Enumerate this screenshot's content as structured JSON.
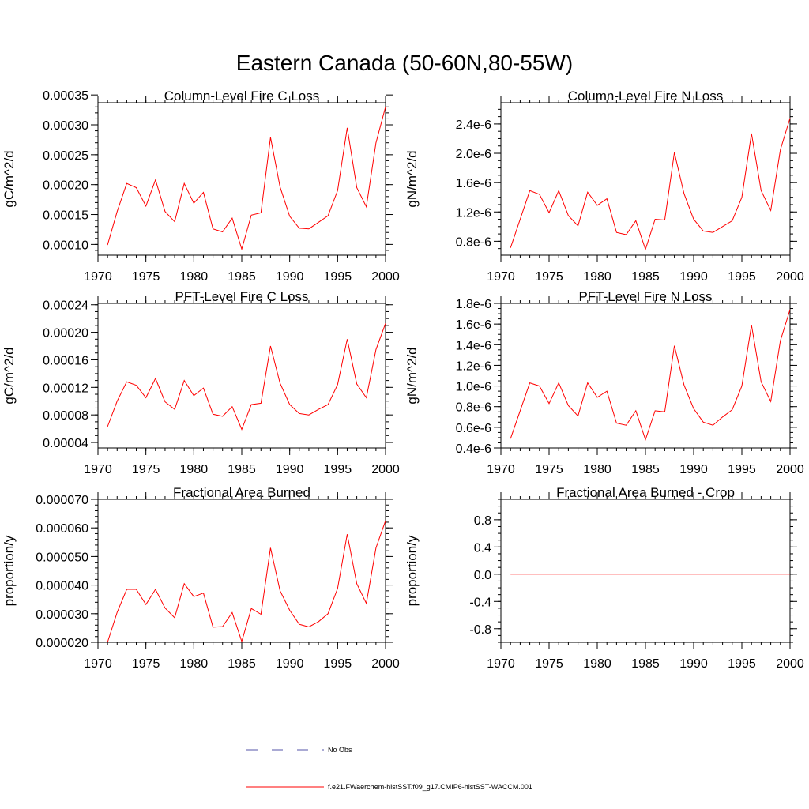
{
  "figure": {
    "title": "Eastern Canada (50-60N,80-55W)"
  },
  "colors": {
    "model_line": "#ff0000",
    "obs_line": "#5555aa",
    "axis": "#000000"
  },
  "legend": {
    "entries": [
      {
        "label": "No Obs",
        "style": "dashed",
        "color": "#5555aa"
      },
      {
        "label": "f.e21.FWaerchem-histSST.f09_g17.CMIP6-histSST-WACCM.001",
        "style": "solid",
        "color": "#ff0000"
      }
    ]
  },
  "chart_data": [
    {
      "type": "line",
      "title": "Column-Level Fire C Loss",
      "xlabel": "",
      "ylabel": "gC/m^2/d",
      "xlim": [
        1970,
        2000
      ],
      "ylim": [
        8.2e-05,
        0.000337
      ],
      "xticks": [
        1970,
        1975,
        1980,
        1985,
        1990,
        1995,
        2000
      ],
      "xtick_labels": [
        "1970",
        "1975",
        "1980",
        "1985",
        "1990",
        "1995",
        "2000"
      ],
      "yticks": [
        0.0001,
        0.00015,
        0.0002,
        0.00025,
        0.0003,
        0.00035
      ],
      "ytick_labels": [
        "0.00010",
        "0.00015",
        "0.00020",
        "0.00025",
        "0.00030",
        "0.00035"
      ],
      "y_minor": 1e-05,
      "x": [
        1971,
        1972,
        1973,
        1974,
        1975,
        1976,
        1977,
        1978,
        1979,
        1980,
        1981,
        1982,
        1983,
        1984,
        1985,
        1986,
        1987,
        1988,
        1989,
        1990,
        1991,
        1992,
        1993,
        1994,
        1995,
        1996,
        1997,
        1998,
        1999,
        2000
      ],
      "series": [
        {
          "values": [
            9.9e-05,
            0.000155,
            0.000202,
            0.000195,
            0.000164,
            0.000208,
            0.000155,
            0.000138,
            0.000202,
            0.000169,
            0.000187,
            0.000126,
            0.000121,
            0.000144,
            9.2e-05,
            0.000149,
            0.000153,
            0.000279,
            0.000196,
            0.000147,
            0.000127,
            0.000126,
            0.000137,
            0.000148,
            0.00019,
            0.000295,
            0.000195,
            0.000163,
            0.00027,
            0.00033
          ]
        }
      ]
    },
    {
      "type": "line",
      "title": "Column-Level Fire N Loss",
      "xlabel": "",
      "ylabel": "gN/m^2/d",
      "xlim": [
        1970,
        2000
      ],
      "ylim": [
        6.1e-07,
        2.69e-06
      ],
      "xticks": [
        1970,
        1975,
        1980,
        1985,
        1990,
        1995,
        2000
      ],
      "xtick_labels": [
        "1970",
        "1975",
        "1980",
        "1985",
        "1990",
        "1995",
        "2000"
      ],
      "yticks": [
        8e-07,
        1.2e-06,
        1.6e-06,
        2e-06,
        2.4e-06
      ],
      "ytick_labels": [
        "0.8e-6",
        "1.2e-6",
        "1.6e-6",
        "2.0e-6",
        "2.4e-6"
      ],
      "y_minor": 1e-07,
      "x": [
        1971,
        1972,
        1973,
        1974,
        1975,
        1976,
        1977,
        1978,
        1979,
        1980,
        1981,
        1982,
        1983,
        1984,
        1985,
        1986,
        1987,
        1988,
        1989,
        1990,
        1991,
        1992,
        1993,
        1994,
        1995,
        1996,
        1997,
        1998,
        1999,
        2000
      ],
      "series": [
        {
          "values": [
            7.1e-07,
            1.1e-06,
            1.49e-06,
            1.44e-06,
            1.19e-06,
            1.49e-06,
            1.15e-06,
            1.01e-06,
            1.47e-06,
            1.29e-06,
            1.38e-06,
            9.2e-07,
            8.9e-07,
            1.08e-06,
            6.9e-07,
            1.1e-06,
            1.09e-06,
            2.01e-06,
            1.45e-06,
            1.1e-06,
            9.4e-07,
            9.2e-07,
            1e-06,
            1.08e-06,
            1.4e-06,
            2.27e-06,
            1.49e-06,
            1.22e-06,
            2.05e-06,
            2.48e-06
          ]
        }
      ]
    },
    {
      "type": "line",
      "title": "PFT-Level Fire C Loss",
      "xlabel": "",
      "ylabel": "gC/m^2/d",
      "xlim": [
        1970,
        2000
      ],
      "ylim": [
        3.2e-05,
        0.000242
      ],
      "xticks": [
        1970,
        1975,
        1980,
        1985,
        1990,
        1995,
        2000
      ],
      "xtick_labels": [
        "1970",
        "1975",
        "1980",
        "1985",
        "1990",
        "1995",
        "2000"
      ],
      "yticks": [
        4e-05,
        8e-05,
        0.00012,
        0.00016,
        0.0002,
        0.00024
      ],
      "ytick_labels": [
        "0.00004",
        "0.00008",
        "0.00012",
        "0.00016",
        "0.00020",
        "0.00024"
      ],
      "y_minor": 1e-05,
      "x": [
        1971,
        1972,
        1973,
        1974,
        1975,
        1976,
        1977,
        1978,
        1979,
        1980,
        1981,
        1982,
        1983,
        1984,
        1985,
        1986,
        1987,
        1988,
        1989,
        1990,
        1991,
        1992,
        1993,
        1994,
        1995,
        1996,
        1997,
        1998,
        1999,
        2000
      ],
      "series": [
        {
          "values": [
            6.3e-05,
            0.0001,
            0.000128,
            0.000123,
            0.000105,
            0.000133,
            9.9e-05,
            8.8e-05,
            0.00013,
            0.000108,
            0.000119,
            8.1e-05,
            7.8e-05,
            9.2e-05,
            5.9e-05,
            9.5e-05,
            9.7e-05,
            0.00018,
            0.000126,
            9.5e-05,
            8.2e-05,
            8e-05,
            8.8e-05,
            9.5e-05,
            0.000124,
            0.00019,
            0.000125,
            0.000105,
            0.000175,
            0.000213
          ]
        }
      ]
    },
    {
      "type": "line",
      "title": "PFT-Level Fire N Loss",
      "xlabel": "",
      "ylabel": "gN/m^2/d",
      "xlim": [
        1970,
        2000
      ],
      "ylim": [
        4e-07,
        1.8e-06
      ],
      "xticks": [
        1970,
        1975,
        1980,
        1985,
        1990,
        1995,
        2000
      ],
      "xtick_labels": [
        "1970",
        "1975",
        "1980",
        "1985",
        "1990",
        "1995",
        "2000"
      ],
      "yticks": [
        4e-07,
        6e-07,
        8e-07,
        1e-06,
        1.2e-06,
        1.4e-06,
        1.6e-06,
        1.8e-06
      ],
      "ytick_labels": [
        "0.4e-6",
        "0.6e-6",
        "0.8e-6",
        "1.0e-6",
        "1.2e-6",
        "1.4e-6",
        "1.6e-6",
        "1.8e-6"
      ],
      "y_minor": 5e-08,
      "x": [
        1971,
        1972,
        1973,
        1974,
        1975,
        1976,
        1977,
        1978,
        1979,
        1980,
        1981,
        1982,
        1983,
        1984,
        1985,
        1986,
        1987,
        1988,
        1989,
        1990,
        1991,
        1992,
        1993,
        1994,
        1995,
        1996,
        1997,
        1998,
        1999,
        2000
      ],
      "series": [
        {
          "values": [
            4.9e-07,
            7.6e-07,
            1.03e-06,
            1e-06,
            8.3e-07,
            1.03e-06,
            8.1e-07,
            7.1e-07,
            1.03e-06,
            8.9e-07,
            9.5e-07,
            6.4e-07,
            6.2e-07,
            7.6e-07,
            4.8e-07,
            7.6e-07,
            7.5e-07,
            1.39e-06,
            1.01e-06,
            7.8e-07,
            6.5e-07,
            6.2e-07,
            7e-07,
            7.7e-07,
            1e-06,
            1.59e-06,
            1.04e-06,
            8.5e-07,
            1.44e-06,
            1.74e-06
          ]
        }
      ]
    },
    {
      "type": "line",
      "title": "Fractional Area Burned",
      "xlabel": "",
      "ylabel": "proportion/y",
      "xlim": [
        1970,
        2000
      ],
      "ylim": [
        2e-05,
        7e-05
      ],
      "xticks": [
        1970,
        1975,
        1980,
        1985,
        1990,
        1995,
        2000
      ],
      "xtick_labels": [
        "1970",
        "1975",
        "1980",
        "1985",
        "1990",
        "1995",
        "2000"
      ],
      "yticks": [
        2e-05,
        3e-05,
        4e-05,
        5e-05,
        6e-05,
        7e-05
      ],
      "ytick_labels": [
        "0.000020",
        "0.000030",
        "0.000040",
        "0.000050",
        "0.000060",
        "0.000070"
      ],
      "y_minor": 2e-06,
      "x": [
        1971,
        1972,
        1973,
        1974,
        1975,
        1976,
        1977,
        1978,
        1979,
        1980,
        1981,
        1982,
        1983,
        1984,
        1985,
        1986,
        1987,
        1988,
        1989,
        1990,
        1991,
        1992,
        1993,
        1994,
        1995,
        1996,
        1997,
        1998,
        1999,
        2000
      ],
      "series": [
        {
          "values": [
            2e-05,
            3.05e-05,
            3.85e-05,
            3.85e-05,
            3.32e-05,
            3.85e-05,
            3.2e-05,
            2.86e-05,
            4.05e-05,
            3.6e-05,
            3.72e-05,
            2.53e-05,
            2.55e-05,
            3.04e-05,
            2.03e-05,
            3.18e-05,
            2.98e-05,
            5.3e-05,
            3.8e-05,
            3.12e-05,
            2.63e-05,
            2.54e-05,
            2.72e-05,
            3e-05,
            3.88e-05,
            5.78e-05,
            4.05e-05,
            3.36e-05,
            5.3e-05,
            6.25e-05
          ]
        }
      ]
    },
    {
      "type": "line",
      "title": "Fractional Area Burned - Crop",
      "xlabel": "",
      "ylabel": "proportion/y",
      "xlim": [
        1970,
        2000
      ],
      "ylim": [
        -1.0,
        1.1
      ],
      "xticks": [
        1970,
        1975,
        1980,
        1985,
        1990,
        1995,
        2000
      ],
      "xtick_labels": [
        "1970",
        "1975",
        "1980",
        "1985",
        "1990",
        "1995",
        "2000"
      ],
      "yticks": [
        -0.8,
        -0.4,
        0.0,
        0.4,
        0.8
      ],
      "ytick_labels": [
        "-0.8",
        "-0.4",
        "0.0",
        "0.4",
        "0.8"
      ],
      "y_minor": 0.1,
      "x": [
        1971,
        1972,
        1973,
        1974,
        1975,
        1976,
        1977,
        1978,
        1979,
        1980,
        1981,
        1982,
        1983,
        1984,
        1985,
        1986,
        1987,
        1988,
        1989,
        1990,
        1991,
        1992,
        1993,
        1994,
        1995,
        1996,
        1997,
        1998,
        1999,
        2000
      ],
      "series": [
        {
          "values": [
            0,
            0,
            0,
            0,
            0,
            0,
            0,
            0,
            0,
            0,
            0,
            0,
            0,
            0,
            0,
            0,
            0,
            0,
            0,
            0,
            0,
            0,
            0,
            0,
            0,
            0,
            0,
            0,
            0,
            0
          ]
        }
      ]
    }
  ]
}
